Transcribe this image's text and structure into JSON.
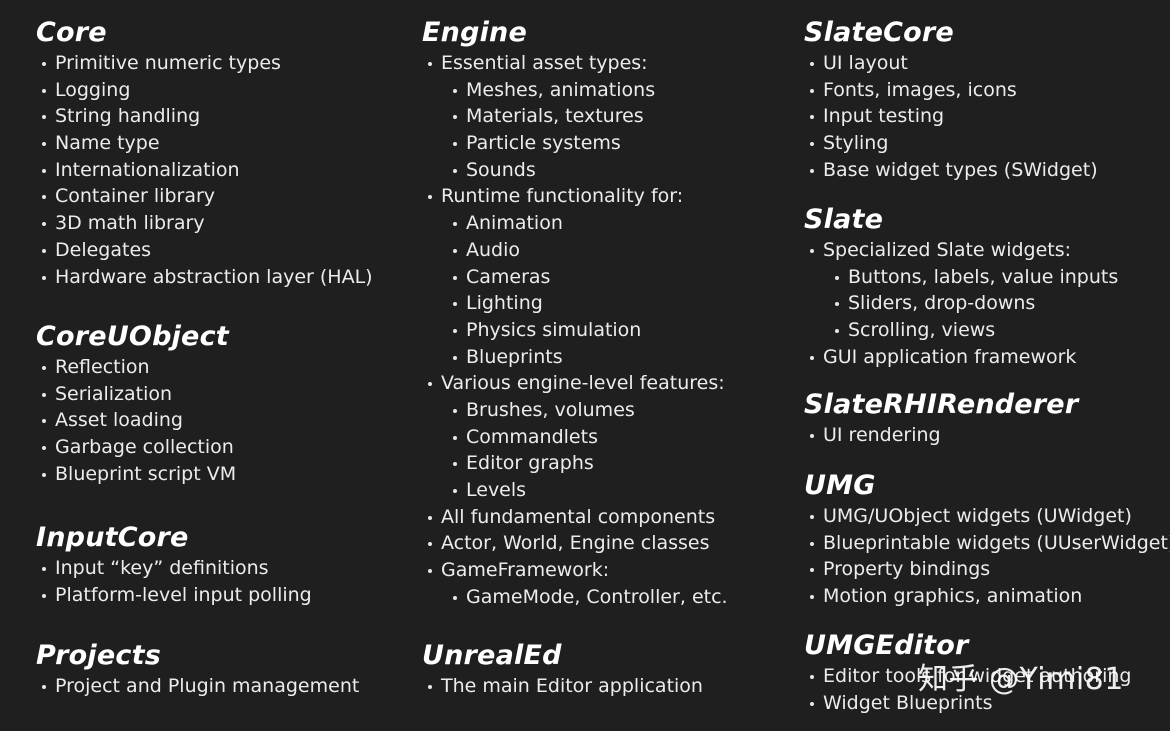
{
  "columns": [
    {
      "sections": [
        {
          "title": "Core",
          "items": [
            {
              "text": "Primitive numeric types",
              "level": 0
            },
            {
              "text": "Logging",
              "level": 0
            },
            {
              "text": "String handling",
              "level": 0
            },
            {
              "text": "Name type",
              "level": 0
            },
            {
              "text": "Internationalization",
              "level": 0
            },
            {
              "text": "Container library",
              "level": 0
            },
            {
              "text": "3D math library",
              "level": 0
            },
            {
              "text": "Delegates",
              "level": 0
            },
            {
              "text": "Hardware abstraction layer (HAL)",
              "level": 0
            }
          ]
        },
        {
          "title": "CoreUObject",
          "items": [
            {
              "text": "Reflection",
              "level": 0
            },
            {
              "text": "Serialization",
              "level": 0
            },
            {
              "text": "Asset loading",
              "level": 0
            },
            {
              "text": "Garbage collection",
              "level": 0
            },
            {
              "text": "Blueprint script VM",
              "level": 0
            }
          ]
        },
        {
          "title": "InputCore",
          "items": [
            {
              "text": "Input “key” definitions",
              "level": 0
            },
            {
              "text": "Platform-level input polling",
              "level": 0
            }
          ]
        },
        {
          "title": "Projects",
          "items": [
            {
              "text": "Project and Plugin management",
              "level": 0
            }
          ]
        }
      ]
    },
    {
      "sections": [
        {
          "title": "Engine",
          "items": [
            {
              "text": "Essential asset types:",
              "level": 0
            },
            {
              "text": "Meshes, animations",
              "level": 1
            },
            {
              "text": "Materials, textures",
              "level": 1
            },
            {
              "text": "Particle systems",
              "level": 1
            },
            {
              "text": "Sounds",
              "level": 1
            },
            {
              "text": "Runtime functionality for:",
              "level": 0
            },
            {
              "text": "Animation",
              "level": 1
            },
            {
              "text": "Audio",
              "level": 1
            },
            {
              "text": "Cameras",
              "level": 1
            },
            {
              "text": "Lighting",
              "level": 1
            },
            {
              "text": "Physics simulation",
              "level": 1
            },
            {
              "text": "Blueprints",
              "level": 1
            },
            {
              "text": "Various engine-level features:",
              "level": 0
            },
            {
              "text": "Brushes, volumes",
              "level": 1
            },
            {
              "text": "Commandlets",
              "level": 1
            },
            {
              "text": "Editor graphs",
              "level": 1
            },
            {
              "text": "Levels",
              "level": 1
            },
            {
              "text": "All fundamental components",
              "level": 0
            },
            {
              "text": "Actor, World, Engine classes",
              "level": 0
            },
            {
              "text": "GameFramework:",
              "level": 0
            },
            {
              "text": "GameMode, Controller, etc.",
              "level": 1
            }
          ]
        },
        {
          "title": "UnrealEd",
          "items": [
            {
              "text": "The main Editor application",
              "level": 0
            }
          ]
        }
      ]
    },
    {
      "sections": [
        {
          "title": "SlateCore",
          "items": [
            {
              "text": "UI layout",
              "level": 0
            },
            {
              "text": "Fonts, images, icons",
              "level": 0
            },
            {
              "text": "Input testing",
              "level": 0
            },
            {
              "text": "Styling",
              "level": 0
            },
            {
              "text": "Base widget types (SWidget)",
              "level": 0
            }
          ]
        },
        {
          "title": "Slate",
          "items": [
            {
              "text": "Specialized Slate widgets:",
              "level": 0
            },
            {
              "text": "Buttons, labels, value inputs",
              "level": 1
            },
            {
              "text": "Sliders, drop-downs",
              "level": 1
            },
            {
              "text": "Scrolling, views",
              "level": 1
            },
            {
              "text": "GUI application framework",
              "level": 0
            }
          ]
        },
        {
          "title": "SlateRHIRenderer",
          "items": [
            {
              "text": "UI rendering",
              "level": 0
            }
          ]
        },
        {
          "title": "UMG",
          "items": [
            {
              "text": "UMG/UObject widgets (UWidget)",
              "level": 0
            },
            {
              "text": "Blueprintable widgets (UUserWidget)",
              "level": 0
            },
            {
              "text": "Property bindings",
              "level": 0
            },
            {
              "text": "Motion graphics, animation",
              "level": 0
            }
          ]
        },
        {
          "title": "UMGEditor",
          "items": [
            {
              "text": "Editor tools for widget authoring",
              "level": 0
            },
            {
              "text": "Widget Blueprints",
              "level": 0
            }
          ]
        }
      ]
    }
  ],
  "watermark": "知乎 @Yimi81"
}
